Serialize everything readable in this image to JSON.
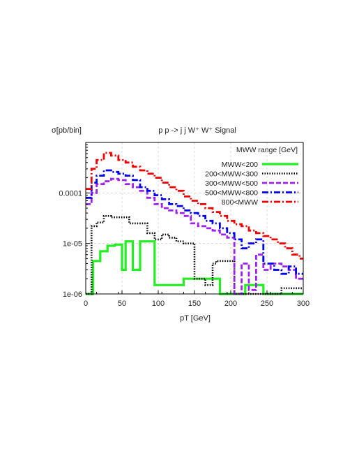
{
  "chart_data": {
    "type": "line",
    "step": true,
    "title": "p p -> j j W⁺ W⁺ Signal",
    "ylabel": "σ[pb/bin]",
    "xlabel": "pT [GeV]",
    "xlim": [
      0,
      300
    ],
    "ylim": [
      1e-06,
      0.001
    ],
    "yscale": "log",
    "grid": true,
    "x_ticks": [
      0,
      50,
      100,
      150,
      200,
      250,
      300
    ],
    "y_ticks": [
      {
        "value": 1e-06,
        "label": "1e-06"
      },
      {
        "value": 1e-05,
        "label": "1e-05"
      },
      {
        "value": 0.0001,
        "label": "0.0001"
      }
    ],
    "legend": {
      "title": "MWW range [GeV]",
      "placement": "top-right"
    },
    "series": [
      {
        "name": "MWW<200",
        "color": "#22ee22",
        "dash": "solid",
        "values": [
          {
            "x0": 0,
            "x1": 10,
            "y": 1e-06
          },
          {
            "x0": 10,
            "x1": 20,
            "y": 4.5e-06
          },
          {
            "x0": 20,
            "x1": 30,
            "y": 7e-06
          },
          {
            "x0": 30,
            "x1": 40,
            "y": 9e-06
          },
          {
            "x0": 40,
            "x1": 50,
            "y": 9.5e-06
          },
          {
            "x0": 50,
            "x1": 55,
            "y": 3e-06
          },
          {
            "x0": 55,
            "x1": 65,
            "y": 1.1e-05
          },
          {
            "x0": 65,
            "x1": 75,
            "y": 3e-06
          },
          {
            "x0": 75,
            "x1": 95,
            "y": 1.1e-05
          },
          {
            "x0": 95,
            "x1": 135,
            "y": 1.5e-06
          },
          {
            "x0": 135,
            "x1": 185,
            "y": 2e-06
          },
          {
            "x0": 185,
            "x1": 220,
            "y": 1e-06
          },
          {
            "x0": 220,
            "x1": 230,
            "y": 1.5e-06
          },
          {
            "x0": 230,
            "x1": 245,
            "y": 1.5e-06
          },
          {
            "x0": 245,
            "x1": 300,
            "y": 1e-06
          }
        ]
      },
      {
        "name": "200<MWW<300",
        "color": "#000000",
        "dash": "dotted",
        "values": [
          {
            "x0": 0,
            "x1": 8,
            "y": 1e-06
          },
          {
            "x0": 8,
            "x1": 15,
            "y": 2.2e-05
          },
          {
            "x0": 15,
            "x1": 25,
            "y": 2.6e-05
          },
          {
            "x0": 25,
            "x1": 35,
            "y": 3.5e-05
          },
          {
            "x0": 35,
            "x1": 60,
            "y": 3.3e-05
          },
          {
            "x0": 60,
            "x1": 85,
            "y": 2.5e-05
          },
          {
            "x0": 85,
            "x1": 95,
            "y": 1.6e-05
          },
          {
            "x0": 95,
            "x1": 105,
            "y": 1.2e-05
          },
          {
            "x0": 105,
            "x1": 115,
            "y": 1.5e-05
          },
          {
            "x0": 115,
            "x1": 125,
            "y": 1.3e-05
          },
          {
            "x0": 125,
            "x1": 135,
            "y": 1.1e-05
          },
          {
            "x0": 135,
            "x1": 150,
            "y": 1e-05
          },
          {
            "x0": 150,
            "x1": 165,
            "y": 2e-06
          },
          {
            "x0": 165,
            "x1": 175,
            "y": 1.5e-06
          },
          {
            "x0": 175,
            "x1": 180,
            "y": 4e-06
          },
          {
            "x0": 180,
            "x1": 205,
            "y": 4.5e-06
          },
          {
            "x0": 205,
            "x1": 270,
            "y": 1e-06
          },
          {
            "x0": 270,
            "x1": 290,
            "y": 1.3e-06
          },
          {
            "x0": 290,
            "x1": 300,
            "y": 1.3e-06
          }
        ]
      },
      {
        "name": "300<MWW<500",
        "color": "#a020f0",
        "dash": "dashed",
        "values": [
          {
            "x0": 0,
            "x1": 8,
            "y": 6e-05
          },
          {
            "x0": 8,
            "x1": 15,
            "y": 0.0001
          },
          {
            "x0": 15,
            "x1": 25,
            "y": 0.00015
          },
          {
            "x0": 25,
            "x1": 35,
            "y": 0.00017
          },
          {
            "x0": 35,
            "x1": 45,
            "y": 0.00019
          },
          {
            "x0": 45,
            "x1": 55,
            "y": 0.00018
          },
          {
            "x0": 55,
            "x1": 65,
            "y": 0.00015
          },
          {
            "x0": 65,
            "x1": 75,
            "y": 0.00013
          },
          {
            "x0": 75,
            "x1": 85,
            "y": 0.00011
          },
          {
            "x0": 85,
            "x1": 95,
            "y": 8e-05
          },
          {
            "x0": 95,
            "x1": 105,
            "y": 6e-05
          },
          {
            "x0": 105,
            "x1": 115,
            "y": 5e-05
          },
          {
            "x0": 115,
            "x1": 125,
            "y": 4.5e-05
          },
          {
            "x0": 125,
            "x1": 135,
            "y": 4e-05
          },
          {
            "x0": 135,
            "x1": 145,
            "y": 3.5e-05
          },
          {
            "x0": 145,
            "x1": 155,
            "y": 2.5e-05
          },
          {
            "x0": 155,
            "x1": 165,
            "y": 2.2e-05
          },
          {
            "x0": 165,
            "x1": 175,
            "y": 2e-05
          },
          {
            "x0": 175,
            "x1": 185,
            "y": 1.8e-05
          },
          {
            "x0": 185,
            "x1": 195,
            "y": 1.5e-05
          },
          {
            "x0": 195,
            "x1": 205,
            "y": 1.3e-05
          },
          {
            "x0": 205,
            "x1": 215,
            "y": 1e-06
          },
          {
            "x0": 215,
            "x1": 225,
            "y": 4e-06
          },
          {
            "x0": 225,
            "x1": 235,
            "y": 1.2e-06
          },
          {
            "x0": 235,
            "x1": 245,
            "y": 6e-06
          },
          {
            "x0": 245,
            "x1": 255,
            "y": 3e-06
          },
          {
            "x0": 255,
            "x1": 270,
            "y": 4e-06
          },
          {
            "x0": 270,
            "x1": 280,
            "y": 3.5e-06
          },
          {
            "x0": 280,
            "x1": 290,
            "y": 3e-06
          },
          {
            "x0": 290,
            "x1": 300,
            "y": 2e-06
          }
        ]
      },
      {
        "name": "500<MWW<800",
        "color": "#0000ee",
        "dash": "dashdot",
        "values": [
          {
            "x0": 0,
            "x1": 8,
            "y": 8e-05
          },
          {
            "x0": 8,
            "x1": 15,
            "y": 0.00016
          },
          {
            "x0": 15,
            "x1": 25,
            "y": 0.00022
          },
          {
            "x0": 25,
            "x1": 35,
            "y": 0.00028
          },
          {
            "x0": 35,
            "x1": 45,
            "y": 0.00026
          },
          {
            "x0": 45,
            "x1": 55,
            "y": 0.00024
          },
          {
            "x0": 55,
            "x1": 65,
            "y": 0.00022
          },
          {
            "x0": 65,
            "x1": 75,
            "y": 0.00018
          },
          {
            "x0": 75,
            "x1": 85,
            "y": 0.00013
          },
          {
            "x0": 85,
            "x1": 95,
            "y": 0.00011
          },
          {
            "x0": 95,
            "x1": 105,
            "y": 9e-05
          },
          {
            "x0": 105,
            "x1": 115,
            "y": 7.5e-05
          },
          {
            "x0": 115,
            "x1": 125,
            "y": 6e-05
          },
          {
            "x0": 125,
            "x1": 135,
            "y": 5.5e-05
          },
          {
            "x0": 135,
            "x1": 145,
            "y": 4.5e-05
          },
          {
            "x0": 145,
            "x1": 155,
            "y": 4e-05
          },
          {
            "x0": 155,
            "x1": 165,
            "y": 3.5e-05
          },
          {
            "x0": 165,
            "x1": 175,
            "y": 2.8e-05
          },
          {
            "x0": 175,
            "x1": 185,
            "y": 2.5e-05
          },
          {
            "x0": 185,
            "x1": 195,
            "y": 2e-05
          },
          {
            "x0": 195,
            "x1": 205,
            "y": 1.6e-05
          },
          {
            "x0": 205,
            "x1": 215,
            "y": 1.2e-05
          },
          {
            "x0": 215,
            "x1": 225,
            "y": 8e-06
          },
          {
            "x0": 225,
            "x1": 235,
            "y": 1e-05
          },
          {
            "x0": 235,
            "x1": 245,
            "y": 1.2e-05
          },
          {
            "x0": 245,
            "x1": 260,
            "y": 4e-06
          },
          {
            "x0": 260,
            "x1": 270,
            "y": 3e-06
          },
          {
            "x0": 270,
            "x1": 280,
            "y": 2.5e-06
          },
          {
            "x0": 280,
            "x1": 290,
            "y": 3.5e-06
          },
          {
            "x0": 290,
            "x1": 300,
            "y": 2.5e-06
          }
        ]
      },
      {
        "name": "800<MWW",
        "color": "#ee0000",
        "dash": "dashdot",
        "values": [
          {
            "x0": 0,
            "x1": 8,
            "y": 0.00012
          },
          {
            "x0": 8,
            "x1": 15,
            "y": 0.0003
          },
          {
            "x0": 15,
            "x1": 25,
            "y": 0.00045
          },
          {
            "x0": 25,
            "x1": 35,
            "y": 0.00062
          },
          {
            "x0": 35,
            "x1": 45,
            "y": 0.00055
          },
          {
            "x0": 45,
            "x1": 55,
            "y": 0.00045
          },
          {
            "x0": 55,
            "x1": 65,
            "y": 0.0004
          },
          {
            "x0": 65,
            "x1": 75,
            "y": 0.00033
          },
          {
            "x0": 75,
            "x1": 85,
            "y": 0.00028
          },
          {
            "x0": 85,
            "x1": 95,
            "y": 0.00024
          },
          {
            "x0": 95,
            "x1": 105,
            "y": 0.0002
          },
          {
            "x0": 105,
            "x1": 115,
            "y": 0.00016
          },
          {
            "x0": 115,
            "x1": 125,
            "y": 0.00013
          },
          {
            "x0": 125,
            "x1": 135,
            "y": 0.00011
          },
          {
            "x0": 135,
            "x1": 145,
            "y": 8.5e-05
          },
          {
            "x0": 145,
            "x1": 155,
            "y": 7e-05
          },
          {
            "x0": 155,
            "x1": 165,
            "y": 6e-05
          },
          {
            "x0": 165,
            "x1": 175,
            "y": 5e-05
          },
          {
            "x0": 175,
            "x1": 185,
            "y": 4.2e-05
          },
          {
            "x0": 185,
            "x1": 195,
            "y": 3.5e-05
          },
          {
            "x0": 195,
            "x1": 205,
            "y": 2.8e-05
          },
          {
            "x0": 205,
            "x1": 215,
            "y": 2.4e-05
          },
          {
            "x0": 215,
            "x1": 225,
            "y": 2.2e-05
          },
          {
            "x0": 225,
            "x1": 235,
            "y": 1.8e-05
          },
          {
            "x0": 235,
            "x1": 245,
            "y": 1.6e-05
          },
          {
            "x0": 245,
            "x1": 255,
            "y": 1.4e-05
          },
          {
            "x0": 255,
            "x1": 265,
            "y": 1.2e-05
          },
          {
            "x0": 265,
            "x1": 275,
            "y": 1e-05
          },
          {
            "x0": 275,
            "x1": 285,
            "y": 8e-06
          },
          {
            "x0": 285,
            "x1": 295,
            "y": 6e-06
          },
          {
            "x0": 295,
            "x1": 300,
            "y": 5e-06
          }
        ]
      }
    ]
  }
}
